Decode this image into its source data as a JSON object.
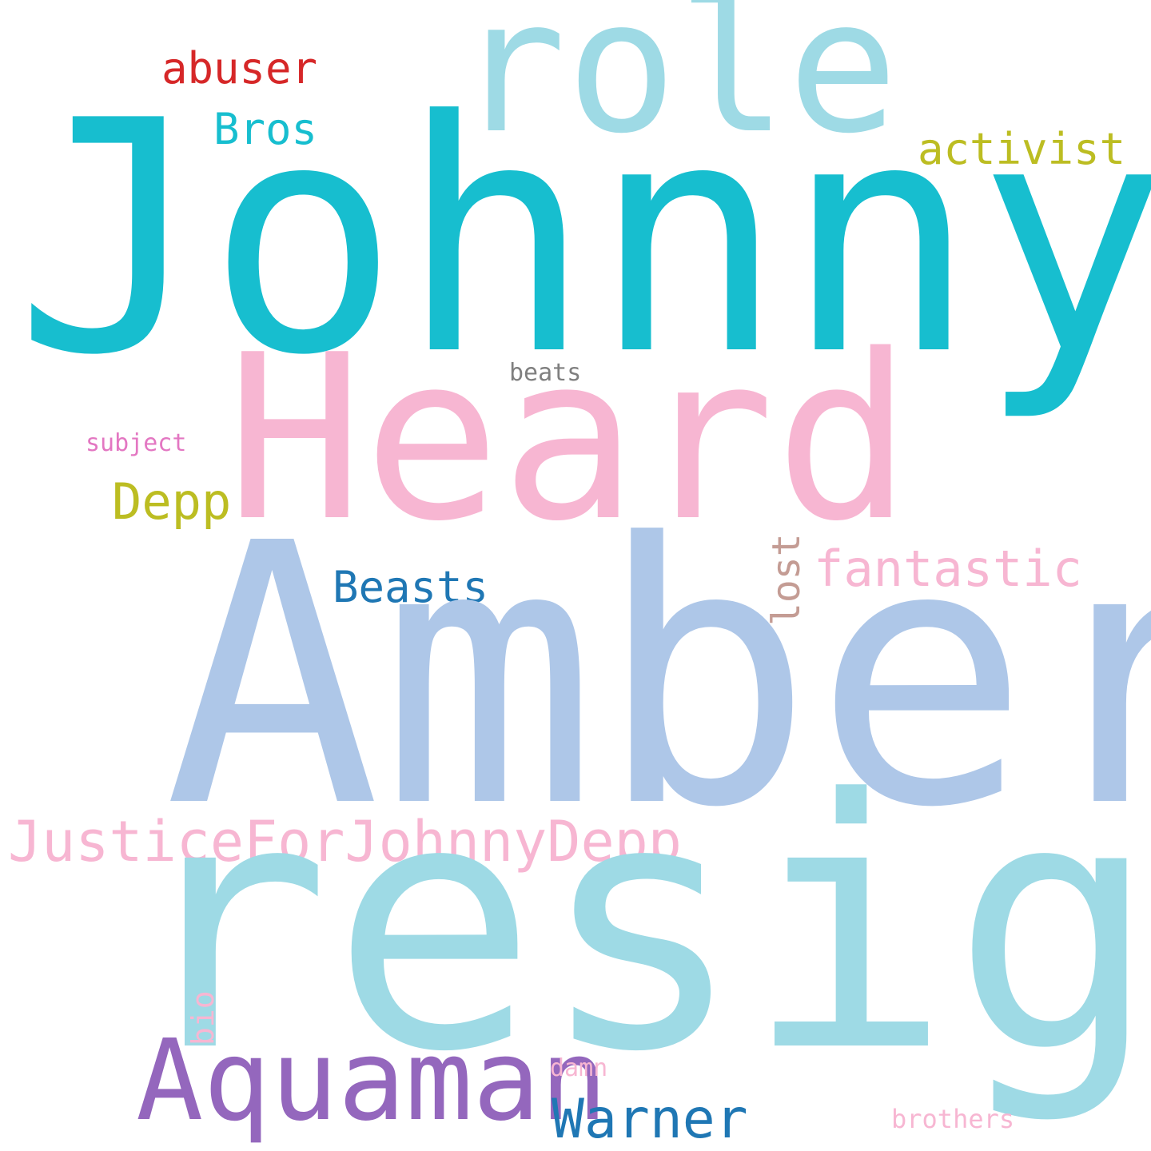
{
  "word_cloud": {
    "words": [
      {
        "key": "johnny",
        "text": "Johnny",
        "color": "#17becf"
      },
      {
        "key": "role",
        "text": "role",
        "color": "#9edae5"
      },
      {
        "key": "abuser",
        "text": "abuser",
        "color": "#d62728"
      },
      {
        "key": "bros",
        "text": "Bros",
        "color": "#17becf"
      },
      {
        "key": "activist",
        "text": "activist",
        "color": "#bcbd22"
      },
      {
        "key": "heard",
        "text": "Heard",
        "color": "#f7b6d2"
      },
      {
        "key": "beats",
        "text": "beats",
        "color": "#7f7f7f"
      },
      {
        "key": "subject",
        "text": "subject",
        "color": "#e377c2"
      },
      {
        "key": "depp",
        "text": "Depp",
        "color": "#bcbd22"
      },
      {
        "key": "fantastic",
        "text": "fantastic",
        "color": "#f7b6d2"
      },
      {
        "key": "beasts",
        "text": "Beasts",
        "color": "#1f77b4"
      },
      {
        "key": "lost",
        "text": "lost",
        "color": "#c49c94"
      },
      {
        "key": "amber",
        "text": "Amber",
        "color": "#aec7e8"
      },
      {
        "key": "justice",
        "text": "JusticeForJohnnyDepp",
        "color": "#f7b6d2"
      },
      {
        "key": "resign",
        "text": "resign",
        "color": "#9edae5"
      },
      {
        "key": "bio",
        "text": "bio",
        "color": "#f7b6d2"
      },
      {
        "key": "aquaman",
        "text": "Aquaman",
        "color": "#9467bd"
      },
      {
        "key": "damn",
        "text": "damn",
        "color": "#f7b6d2"
      },
      {
        "key": "warner",
        "text": "Warner",
        "color": "#1f77b4"
      },
      {
        "key": "brothers",
        "text": "brothers",
        "color": "#f7b6d2"
      }
    ]
  }
}
